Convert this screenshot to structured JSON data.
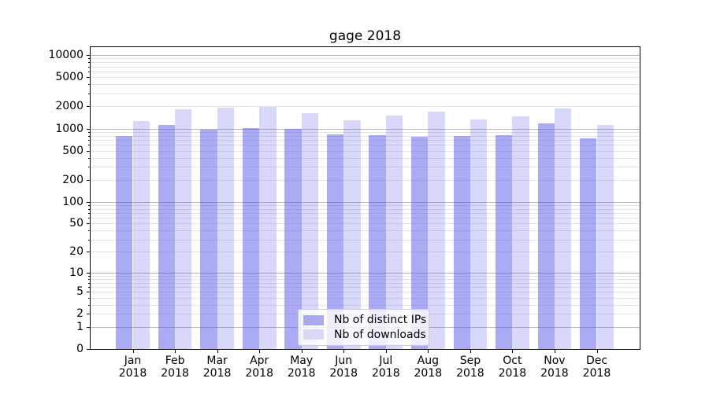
{
  "chart_data": {
    "type": "bar",
    "title": "gage 2018",
    "x": [
      "Jan",
      "Feb",
      "Mar",
      "Apr",
      "May",
      "Jun",
      "Jul",
      "Aug",
      "Sep",
      "Oct",
      "Nov",
      "Dec"
    ],
    "x_year": "2018",
    "series": [
      {
        "name": "Nb of distinct IPs",
        "values": [
          790,
          1130,
          960,
          1010,
          1000,
          830,
          810,
          770,
          790,
          805,
          1190,
          735
        ],
        "fill_rgba": "rgba(88,88,235,0.5)",
        "color_solid": "#aaaaf0"
      },
      {
        "name": "Nb of downloads",
        "values": [
          1280,
          1850,
          1920,
          1970,
          1620,
          1290,
          1500,
          1700,
          1330,
          1460,
          1870,
          1120
        ],
        "fill_rgba": "rgba(88,88,235,0.235)",
        "color_solid": "#d8d8f7"
      }
    ],
    "yscale": "log10(1+v) symlog-like",
    "ytick_labels": [
      10000,
      5000,
      2000,
      1000,
      500,
      200,
      100,
      50,
      20,
      10,
      5,
      2,
      1,
      0
    ],
    "ytick_major_decades": [
      1,
      10,
      100,
      1000,
      10000
    ],
    "ylim": [
      0,
      12900
    ],
    "grid": "horizontal",
    "legend_position": "lower center",
    "colors": {
      "major_grid": "#b5b5b5",
      "minor_grid": "#e4e4e4",
      "spine": "#000000",
      "text": "#000000"
    }
  }
}
